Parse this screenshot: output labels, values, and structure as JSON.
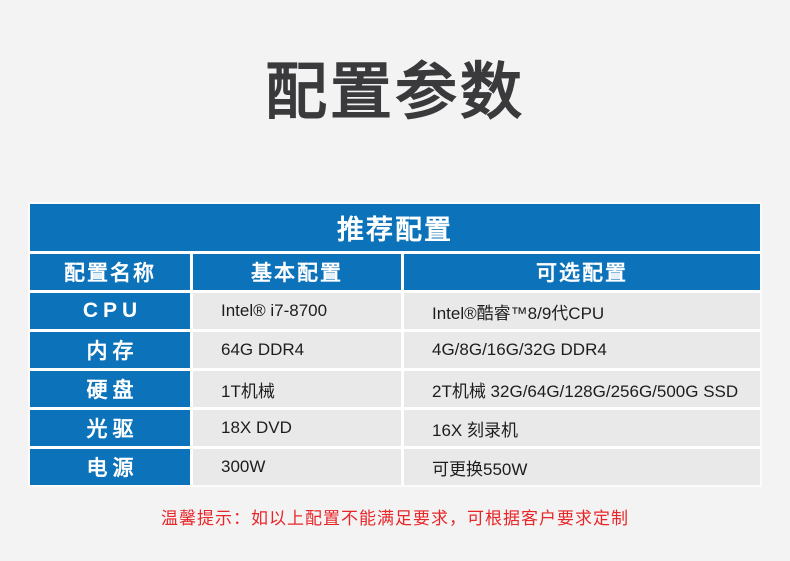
{
  "page": {
    "title": "配置参数",
    "note": "温馨提示：如以上配置不能满足要求，可根据客户要求定制"
  },
  "table": {
    "header": "推荐配置",
    "columns": [
      "配置名称",
      "基本配置",
      "可选配置"
    ],
    "rows": [
      {
        "name": "CPU",
        "basic": "Intel® i7-8700",
        "optional": "Intel®酷睿™8/9代CPU"
      },
      {
        "name": "内存",
        "basic": "64G DDR4",
        "optional": "4G/8G/16G/32G DDR4"
      },
      {
        "name": "硬盘",
        "basic": "1T机械",
        "optional": "2T机械 32G/64G/128G/256G/500G SSD"
      },
      {
        "name": "光驱",
        "basic": "18X DVD",
        "optional": "16X 刻录机"
      },
      {
        "name": "电源",
        "basic": "300W",
        "optional": "可更换550W"
      }
    ]
  },
  "colors": {
    "accent_blue": "#0c72b9",
    "cell_gray": "#e9e9e9",
    "page_background": "#f3f3f3",
    "title_text": "#3a3a3c",
    "note_red": "#e8262a"
  }
}
